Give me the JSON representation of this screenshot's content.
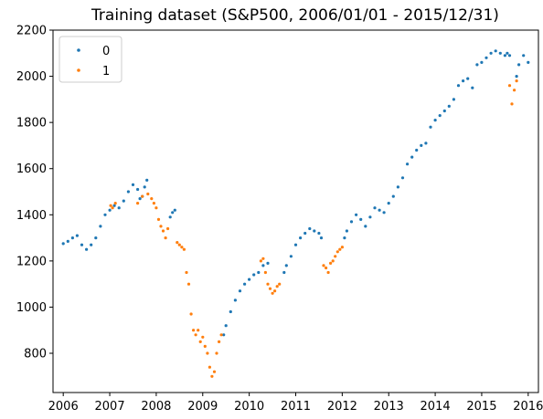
{
  "chart_data": {
    "type": "scatter",
    "title": "Training dataset (S&P500, 2006/01/01 - 2015/12/31)",
    "xlabel": "",
    "ylabel": "",
    "xlim": [
      2005.78,
      2016.22
    ],
    "ylim": [
      630,
      2200
    ],
    "xticks": [
      2006,
      2007,
      2008,
      2009,
      2010,
      2011,
      2012,
      2013,
      2014,
      2015,
      2016
    ],
    "yticks": [
      800,
      1000,
      1200,
      1400,
      1600,
      1800,
      2000,
      2200
    ],
    "grid": false,
    "legend_position": "top-left",
    "series": [
      {
        "name": "0",
        "color": "#1f77b4",
        "x": [
          2006.0,
          2006.1,
          2006.2,
          2006.3,
          2006.4,
          2006.5,
          2006.6,
          2006.7,
          2006.8,
          2006.9,
          2007.0,
          2007.1,
          2007.2,
          2007.3,
          2007.4,
          2007.5,
          2007.6,
          2007.65,
          2007.7,
          2007.75,
          2007.8,
          2008.3,
          2008.35,
          2008.4,
          2009.45,
          2009.5,
          2009.6,
          2009.7,
          2009.8,
          2009.9,
          2010.0,
          2010.1,
          2010.2,
          2010.3,
          2010.4,
          2010.75,
          2010.8,
          2010.9,
          2011.0,
          2011.1,
          2011.2,
          2011.3,
          2011.4,
          2011.5,
          2011.55,
          2012.05,
          2012.1,
          2012.2,
          2012.3,
          2012.4,
          2012.5,
          2012.6,
          2012.7,
          2012.8,
          2012.9,
          2013.0,
          2013.1,
          2013.2,
          2013.3,
          2013.4,
          2013.5,
          2013.6,
          2013.7,
          2013.8,
          2013.9,
          2014.0,
          2014.1,
          2014.2,
          2014.3,
          2014.4,
          2014.5,
          2014.6,
          2014.7,
          2014.8,
          2014.9,
          2015.0,
          2015.1,
          2015.2,
          2015.3,
          2015.4,
          2015.5,
          2015.55,
          2015.6,
          2015.75,
          2015.8,
          2015.9,
          2016.0
        ],
        "values": [
          1275,
          1285,
          1300,
          1310,
          1270,
          1250,
          1270,
          1300,
          1350,
          1400,
          1420,
          1440,
          1430,
          1460,
          1500,
          1530,
          1510,
          1470,
          1480,
          1520,
          1550,
          1390,
          1410,
          1420,
          880,
          920,
          980,
          1030,
          1070,
          1100,
          1120,
          1140,
          1150,
          1180,
          1190,
          1150,
          1180,
          1220,
          1270,
          1300,
          1320,
          1340,
          1330,
          1320,
          1300,
          1300,
          1330,
          1370,
          1400,
          1380,
          1350,
          1390,
          1430,
          1420,
          1410,
          1450,
          1480,
          1520,
          1560,
          1620,
          1650,
          1680,
          1700,
          1710,
          1780,
          1810,
          1830,
          1850,
          1870,
          1900,
          1960,
          1980,
          1990,
          1950,
          2050,
          2060,
          2080,
          2100,
          2110,
          2100,
          2090,
          2100,
          2090,
          2000,
          2050,
          2090,
          2060
        ]
      },
      {
        "name": "1",
        "color": "#ff7f0e",
        "x": [
          2007.02,
          2007.06,
          2007.12,
          2007.6,
          2007.7,
          2007.82,
          2007.9,
          2007.95,
          2008.0,
          2008.05,
          2008.1,
          2008.15,
          2008.2,
          2008.25,
          2008.45,
          2008.5,
          2008.55,
          2008.6,
          2008.65,
          2008.7,
          2008.75,
          2008.8,
          2008.85,
          2008.9,
          2008.95,
          2009.0,
          2009.05,
          2009.1,
          2009.15,
          2009.2,
          2009.25,
          2009.3,
          2009.35,
          2009.4,
          2010.25,
          2010.3,
          2010.35,
          2010.4,
          2010.45,
          2010.5,
          2010.55,
          2010.6,
          2010.65,
          2011.6,
          2011.65,
          2011.7,
          2011.75,
          2011.8,
          2011.85,
          2011.9,
          2011.95,
          2012.0,
          2015.6,
          2015.65,
          2015.7,
          2015.75
        ],
        "values": [
          1440,
          1430,
          1450,
          1450,
          1480,
          1490,
          1470,
          1450,
          1430,
          1380,
          1350,
          1330,
          1300,
          1340,
          1280,
          1270,
          1260,
          1250,
          1150,
          1100,
          970,
          900,
          880,
          900,
          850,
          870,
          830,
          800,
          740,
          700,
          720,
          800,
          850,
          880,
          1200,
          1210,
          1150,
          1100,
          1080,
          1060,
          1070,
          1090,
          1100,
          1180,
          1170,
          1150,
          1190,
          1200,
          1220,
          1240,
          1250,
          1260,
          1960,
          1880,
          1940,
          1980
        ]
      }
    ]
  }
}
